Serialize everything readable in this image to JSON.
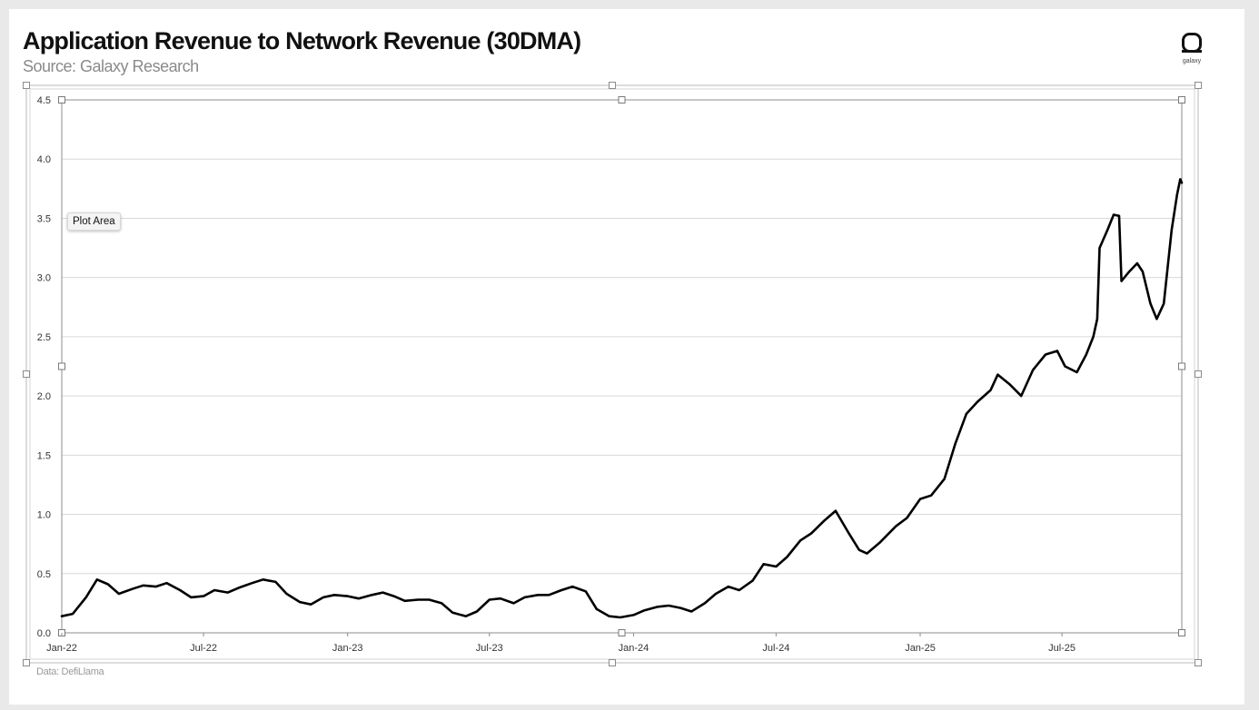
{
  "header": {
    "title": "Application Revenue to Network Revenue (30DMA)",
    "subtitle": "Source: Galaxy Research",
    "logo_text": "galaxy"
  },
  "footer": {
    "note": "Data: DefiLlama"
  },
  "tooltip": {
    "label": "Plot Area"
  },
  "colors": {
    "line": "#000000",
    "grid": "#d9d9d9",
    "axis": "#8c8c8c",
    "selection": "#b8b8b8"
  },
  "chart_data": {
    "type": "line",
    "title": "Application Revenue to Network Revenue (30DMA)",
    "xlabel": "",
    "ylabel": "",
    "ylim": [
      0,
      4.5
    ],
    "y_ticks": [
      "0.0",
      "0.5",
      "1.0",
      "1.5",
      "2.0",
      "2.5",
      "3.0",
      "3.5",
      "4.0",
      "4.5"
    ],
    "x_ticks": [
      "Jan-22",
      "Jul-22",
      "Jan-23",
      "Jul-23",
      "Jan-24",
      "Jul-24",
      "Jan-25",
      "Jul-25"
    ],
    "xlim": [
      "2022-01-01",
      "2025-12-01"
    ],
    "grid": true,
    "series": [
      {
        "values": [
          [
            "2022-01-01",
            0.14
          ],
          [
            "2022-01-15",
            0.16
          ],
          [
            "2022-02-01",
            0.3
          ],
          [
            "2022-02-15",
            0.45
          ],
          [
            "2022-03-01",
            0.41
          ],
          [
            "2022-03-15",
            0.33
          ],
          [
            "2022-04-01",
            0.37
          ],
          [
            "2022-04-15",
            0.4
          ],
          [
            "2022-05-01",
            0.39
          ],
          [
            "2022-05-15",
            0.42
          ],
          [
            "2022-06-01",
            0.36
          ],
          [
            "2022-06-15",
            0.3
          ],
          [
            "2022-07-01",
            0.31
          ],
          [
            "2022-07-15",
            0.36
          ],
          [
            "2022-08-01",
            0.34
          ],
          [
            "2022-08-15",
            0.38
          ],
          [
            "2022-09-01",
            0.42
          ],
          [
            "2022-09-15",
            0.45
          ],
          [
            "2022-10-01",
            0.43
          ],
          [
            "2022-10-15",
            0.33
          ],
          [
            "2022-11-01",
            0.26
          ],
          [
            "2022-11-15",
            0.24
          ],
          [
            "2022-12-01",
            0.3
          ],
          [
            "2022-12-15",
            0.32
          ],
          [
            "2023-01-01",
            0.31
          ],
          [
            "2023-01-15",
            0.29
          ],
          [
            "2023-02-01",
            0.32
          ],
          [
            "2023-02-15",
            0.34
          ],
          [
            "2023-03-01",
            0.31
          ],
          [
            "2023-03-15",
            0.27
          ],
          [
            "2023-04-01",
            0.28
          ],
          [
            "2023-04-15",
            0.28
          ],
          [
            "2023-05-01",
            0.25
          ],
          [
            "2023-05-15",
            0.17
          ],
          [
            "2023-06-01",
            0.14
          ],
          [
            "2023-06-15",
            0.18
          ],
          [
            "2023-07-01",
            0.28
          ],
          [
            "2023-07-15",
            0.29
          ],
          [
            "2023-08-01",
            0.25
          ],
          [
            "2023-08-15",
            0.3
          ],
          [
            "2023-09-01",
            0.32
          ],
          [
            "2023-09-15",
            0.32
          ],
          [
            "2023-10-01",
            0.36
          ],
          [
            "2023-10-15",
            0.39
          ],
          [
            "2023-11-01",
            0.35
          ],
          [
            "2023-11-15",
            0.2
          ],
          [
            "2023-12-01",
            0.14
          ],
          [
            "2023-12-15",
            0.13
          ],
          [
            "2024-01-01",
            0.15
          ],
          [
            "2024-01-15",
            0.19
          ],
          [
            "2024-02-01",
            0.22
          ],
          [
            "2024-02-15",
            0.23
          ],
          [
            "2024-03-01",
            0.21
          ],
          [
            "2024-03-15",
            0.18
          ],
          [
            "2024-04-01",
            0.25
          ],
          [
            "2024-04-15",
            0.33
          ],
          [
            "2024-05-01",
            0.39
          ],
          [
            "2024-05-15",
            0.36
          ],
          [
            "2024-06-01",
            0.44
          ],
          [
            "2024-06-15",
            0.58
          ],
          [
            "2024-07-01",
            0.56
          ],
          [
            "2024-07-15",
            0.64
          ],
          [
            "2024-08-01",
            0.78
          ],
          [
            "2024-08-15",
            0.84
          ],
          [
            "2024-09-01",
            0.95
          ],
          [
            "2024-09-15",
            1.03
          ],
          [
            "2024-10-01",
            0.85
          ],
          [
            "2024-10-15",
            0.7
          ],
          [
            "2024-10-25",
            0.67
          ],
          [
            "2024-11-10",
            0.76
          ],
          [
            "2024-12-01",
            0.9
          ],
          [
            "2024-12-15",
            0.97
          ],
          [
            "2025-01-01",
            1.13
          ],
          [
            "2025-01-15",
            1.16
          ],
          [
            "2025-02-01",
            1.3
          ],
          [
            "2025-02-15",
            1.6
          ],
          [
            "2025-03-01",
            1.85
          ],
          [
            "2025-03-15",
            1.95
          ],
          [
            "2025-04-01",
            2.05
          ],
          [
            "2025-04-10",
            2.18
          ],
          [
            "2025-04-25",
            2.1
          ],
          [
            "2025-05-10",
            2.0
          ],
          [
            "2025-05-25",
            2.22
          ],
          [
            "2025-06-10",
            2.35
          ],
          [
            "2025-06-25",
            2.38
          ],
          [
            "2025-07-05",
            2.25
          ],
          [
            "2025-07-20",
            2.2
          ],
          [
            "2025-08-01",
            2.35
          ],
          [
            "2025-08-10",
            2.5
          ],
          [
            "2025-08-15",
            2.65
          ],
          [
            "2025-08-18",
            3.25
          ],
          [
            "2025-08-28",
            3.4
          ],
          [
            "2025-09-05",
            3.53
          ],
          [
            "2025-09-12",
            3.52
          ],
          [
            "2025-09-15",
            2.97
          ],
          [
            "2025-09-25",
            3.05
          ],
          [
            "2025-10-05",
            3.12
          ],
          [
            "2025-10-12",
            3.05
          ],
          [
            "2025-10-22",
            2.78
          ],
          [
            "2025-10-30",
            2.65
          ],
          [
            "2025-11-08",
            2.78
          ],
          [
            "2025-11-18",
            3.4
          ],
          [
            "2025-11-25",
            3.7
          ],
          [
            "2025-11-29",
            3.83
          ],
          [
            "2025-12-01",
            3.8
          ]
        ]
      }
    ]
  }
}
